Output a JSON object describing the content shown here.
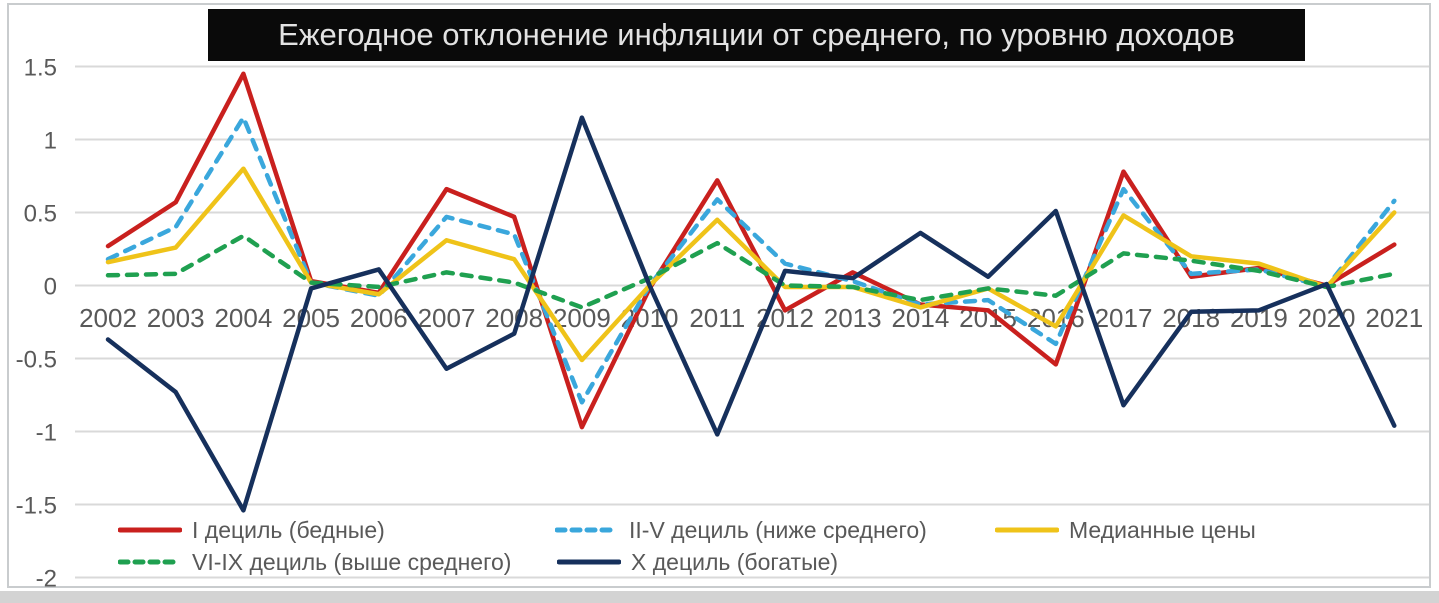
{
  "title": "Ежегодное отклонение инфляции от среднего, по уровню доходов",
  "chart_data": {
    "type": "line",
    "x": [
      2002,
      2003,
      2004,
      2005,
      2006,
      2007,
      2008,
      2009,
      2010,
      2011,
      2012,
      2013,
      2014,
      2015,
      2016,
      2017,
      2018,
      2019,
      2020,
      2021
    ],
    "series": [
      {
        "name": "I дециль (бедные)",
        "color": "#C9201E",
        "dashed": false,
        "values": [
          0.27,
          0.57,
          1.45,
          0.03,
          -0.05,
          0.66,
          0.47,
          -0.97,
          -0.02,
          0.72,
          -0.17,
          0.09,
          -0.13,
          -0.17,
          -0.54,
          0.78,
          0.06,
          0.12,
          0.0,
          0.28
        ]
      },
      {
        "name": "II-V дециль (ниже среднего)",
        "color": "#3AA7DC",
        "dashed": true,
        "values": [
          0.18,
          0.4,
          1.15,
          0.02,
          -0.07,
          0.47,
          0.35,
          -0.8,
          0.0,
          0.59,
          0.15,
          0.03,
          -0.13,
          -0.1,
          -0.4,
          0.66,
          0.08,
          0.11,
          -0.01,
          0.58
        ]
      },
      {
        "name": "Медианные цены",
        "color": "#EFC319",
        "dashed": false,
        "values": [
          0.16,
          0.26,
          0.8,
          0.02,
          -0.06,
          0.31,
          0.18,
          -0.51,
          0.0,
          0.45,
          -0.01,
          -0.01,
          -0.15,
          -0.02,
          -0.28,
          0.48,
          0.2,
          0.15,
          -0.01,
          0.5
        ]
      },
      {
        "name": "VI-IX дециль (выше среднего)",
        "color": "#1FA050",
        "dashed": true,
        "values": [
          0.07,
          0.08,
          0.34,
          0.02,
          -0.01,
          0.09,
          0.02,
          -0.15,
          0.05,
          0.29,
          0.0,
          -0.01,
          -0.1,
          -0.02,
          -0.07,
          0.22,
          0.17,
          0.1,
          -0.01,
          0.08
        ]
      },
      {
        "name": "X дециль (богатые)",
        "color": "#16305C",
        "dashed": false,
        "values": [
          -0.37,
          -0.73,
          -1.54,
          -0.02,
          0.11,
          -0.57,
          -0.33,
          1.15,
          0.0,
          -1.02,
          0.1,
          0.05,
          0.36,
          0.06,
          0.51,
          -0.82,
          -0.18,
          -0.17,
          0.01,
          -0.96
        ]
      }
    ],
    "title": "Ежегодное отклонение инфляции от среднего, по уровню доходов",
    "xlabel": "",
    "ylabel": "",
    "ylim": [
      -2,
      1.5
    ],
    "yticks": [
      "1.5",
      "1",
      "0.5",
      "0",
      "-0.5",
      "-1",
      "-1.5",
      "-2"
    ],
    "ytick_values": [
      1.5,
      1,
      0.5,
      0,
      -0.5,
      -1,
      -1.5,
      -2
    ],
    "grid": true,
    "legend_position": "bottom",
    "gridline_color": "#D9D9D9",
    "axis_text_color": "#595959",
    "title_bg_color": "#0A0A0A",
    "title_text_color": "#E3E3E3"
  },
  "legend": {
    "items": [
      {
        "label": "I дециль (бедные)"
      },
      {
        "label": "II-V дециль (ниже среднего)"
      },
      {
        "label": "Медианные цены"
      },
      {
        "label": "VI-IX дециль (выше среднего)"
      },
      {
        "label": "X дециль (богатые)"
      }
    ]
  }
}
